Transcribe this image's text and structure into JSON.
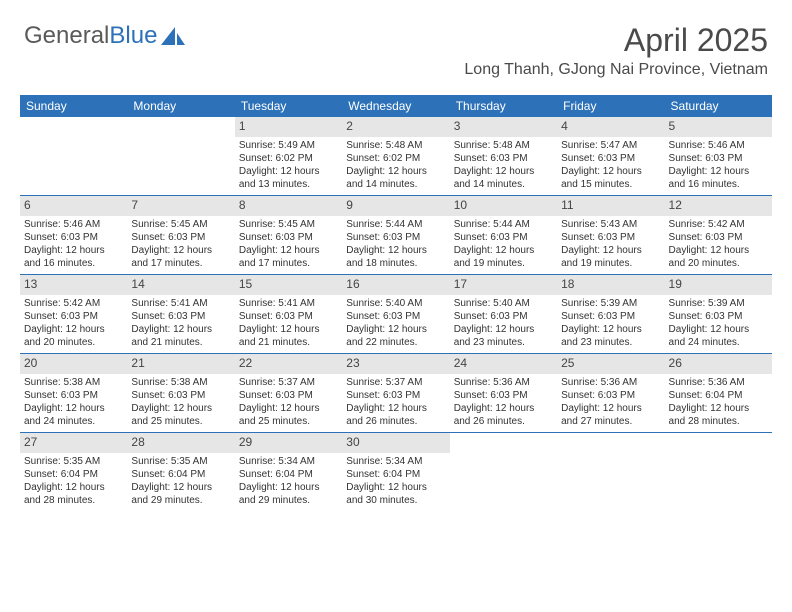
{
  "brand": {
    "name_part1": "General",
    "name_part2": "Blue"
  },
  "title": "April 2025",
  "location": "Long Thanh, GJong Nai Province, Vietnam",
  "colors": {
    "accent": "#2d72b8",
    "daynum_bg": "#e6e6e6",
    "text": "#333333",
    "title_text": "#4a4a4a",
    "logo_gray": "#5a5a5a"
  },
  "weekdays": [
    "Sunday",
    "Monday",
    "Tuesday",
    "Wednesday",
    "Thursday",
    "Friday",
    "Saturday"
  ],
  "weeks": [
    [
      null,
      null,
      {
        "n": "1",
        "sr": "Sunrise: 5:49 AM",
        "ss": "Sunset: 6:02 PM",
        "dl": "Daylight: 12 hours and 13 minutes."
      },
      {
        "n": "2",
        "sr": "Sunrise: 5:48 AM",
        "ss": "Sunset: 6:02 PM",
        "dl": "Daylight: 12 hours and 14 minutes."
      },
      {
        "n": "3",
        "sr": "Sunrise: 5:48 AM",
        "ss": "Sunset: 6:03 PM",
        "dl": "Daylight: 12 hours and 14 minutes."
      },
      {
        "n": "4",
        "sr": "Sunrise: 5:47 AM",
        "ss": "Sunset: 6:03 PM",
        "dl": "Daylight: 12 hours and 15 minutes."
      },
      {
        "n": "5",
        "sr": "Sunrise: 5:46 AM",
        "ss": "Sunset: 6:03 PM",
        "dl": "Daylight: 12 hours and 16 minutes."
      }
    ],
    [
      {
        "n": "6",
        "sr": "Sunrise: 5:46 AM",
        "ss": "Sunset: 6:03 PM",
        "dl": "Daylight: 12 hours and 16 minutes."
      },
      {
        "n": "7",
        "sr": "Sunrise: 5:45 AM",
        "ss": "Sunset: 6:03 PM",
        "dl": "Daylight: 12 hours and 17 minutes."
      },
      {
        "n": "8",
        "sr": "Sunrise: 5:45 AM",
        "ss": "Sunset: 6:03 PM",
        "dl": "Daylight: 12 hours and 17 minutes."
      },
      {
        "n": "9",
        "sr": "Sunrise: 5:44 AM",
        "ss": "Sunset: 6:03 PM",
        "dl": "Daylight: 12 hours and 18 minutes."
      },
      {
        "n": "10",
        "sr": "Sunrise: 5:44 AM",
        "ss": "Sunset: 6:03 PM",
        "dl": "Daylight: 12 hours and 19 minutes."
      },
      {
        "n": "11",
        "sr": "Sunrise: 5:43 AM",
        "ss": "Sunset: 6:03 PM",
        "dl": "Daylight: 12 hours and 19 minutes."
      },
      {
        "n": "12",
        "sr": "Sunrise: 5:42 AM",
        "ss": "Sunset: 6:03 PM",
        "dl": "Daylight: 12 hours and 20 minutes."
      }
    ],
    [
      {
        "n": "13",
        "sr": "Sunrise: 5:42 AM",
        "ss": "Sunset: 6:03 PM",
        "dl": "Daylight: 12 hours and 20 minutes."
      },
      {
        "n": "14",
        "sr": "Sunrise: 5:41 AM",
        "ss": "Sunset: 6:03 PM",
        "dl": "Daylight: 12 hours and 21 minutes."
      },
      {
        "n": "15",
        "sr": "Sunrise: 5:41 AM",
        "ss": "Sunset: 6:03 PM",
        "dl": "Daylight: 12 hours and 21 minutes."
      },
      {
        "n": "16",
        "sr": "Sunrise: 5:40 AM",
        "ss": "Sunset: 6:03 PM",
        "dl": "Daylight: 12 hours and 22 minutes."
      },
      {
        "n": "17",
        "sr": "Sunrise: 5:40 AM",
        "ss": "Sunset: 6:03 PM",
        "dl": "Daylight: 12 hours and 23 minutes."
      },
      {
        "n": "18",
        "sr": "Sunrise: 5:39 AM",
        "ss": "Sunset: 6:03 PM",
        "dl": "Daylight: 12 hours and 23 minutes."
      },
      {
        "n": "19",
        "sr": "Sunrise: 5:39 AM",
        "ss": "Sunset: 6:03 PM",
        "dl": "Daylight: 12 hours and 24 minutes."
      }
    ],
    [
      {
        "n": "20",
        "sr": "Sunrise: 5:38 AM",
        "ss": "Sunset: 6:03 PM",
        "dl": "Daylight: 12 hours and 24 minutes."
      },
      {
        "n": "21",
        "sr": "Sunrise: 5:38 AM",
        "ss": "Sunset: 6:03 PM",
        "dl": "Daylight: 12 hours and 25 minutes."
      },
      {
        "n": "22",
        "sr": "Sunrise: 5:37 AM",
        "ss": "Sunset: 6:03 PM",
        "dl": "Daylight: 12 hours and 25 minutes."
      },
      {
        "n": "23",
        "sr": "Sunrise: 5:37 AM",
        "ss": "Sunset: 6:03 PM",
        "dl": "Daylight: 12 hours and 26 minutes."
      },
      {
        "n": "24",
        "sr": "Sunrise: 5:36 AM",
        "ss": "Sunset: 6:03 PM",
        "dl": "Daylight: 12 hours and 26 minutes."
      },
      {
        "n": "25",
        "sr": "Sunrise: 5:36 AM",
        "ss": "Sunset: 6:03 PM",
        "dl": "Daylight: 12 hours and 27 minutes."
      },
      {
        "n": "26",
        "sr": "Sunrise: 5:36 AM",
        "ss": "Sunset: 6:04 PM",
        "dl": "Daylight: 12 hours and 28 minutes."
      }
    ],
    [
      {
        "n": "27",
        "sr": "Sunrise: 5:35 AM",
        "ss": "Sunset: 6:04 PM",
        "dl": "Daylight: 12 hours and 28 minutes."
      },
      {
        "n": "28",
        "sr": "Sunrise: 5:35 AM",
        "ss": "Sunset: 6:04 PM",
        "dl": "Daylight: 12 hours and 29 minutes."
      },
      {
        "n": "29",
        "sr": "Sunrise: 5:34 AM",
        "ss": "Sunset: 6:04 PM",
        "dl": "Daylight: 12 hours and 29 minutes."
      },
      {
        "n": "30",
        "sr": "Sunrise: 5:34 AM",
        "ss": "Sunset: 6:04 PM",
        "dl": "Daylight: 12 hours and 30 minutes."
      },
      null,
      null,
      null
    ]
  ]
}
